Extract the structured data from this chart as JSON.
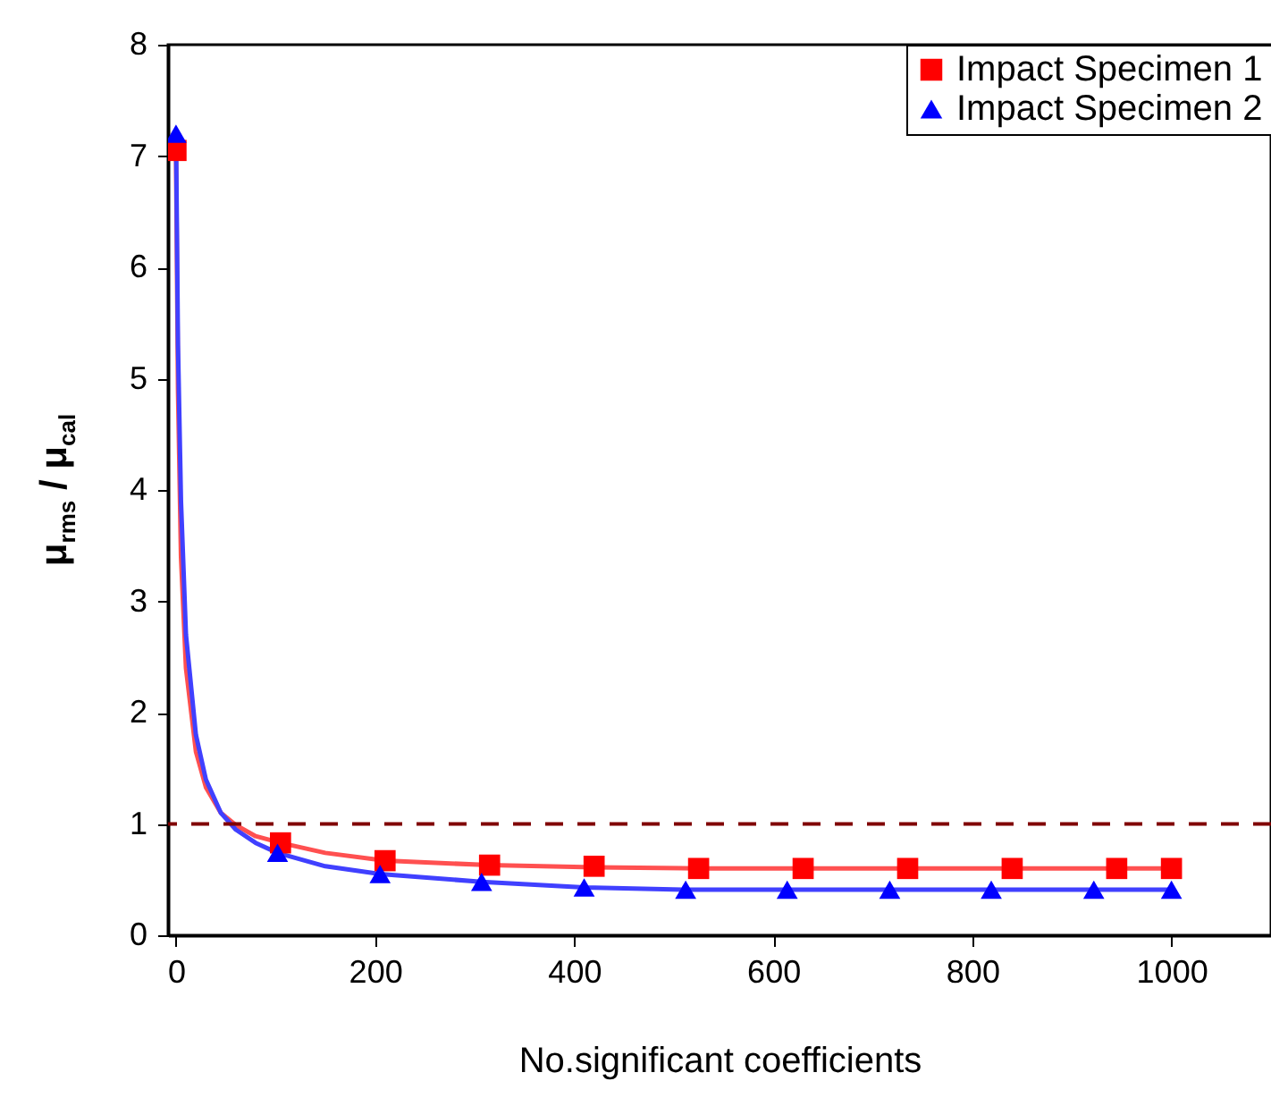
{
  "chart_data": {
    "type": "line",
    "xlabel": "No.significant coefficients",
    "ylabel": "μ$_{rms}$ / μ$_{cal}$",
    "xlim": [
      -8,
      1100
    ],
    "ylim": [
      0,
      8
    ],
    "xticks": [
      0,
      200,
      400,
      600,
      800,
      1000
    ],
    "yticks": [
      0,
      1,
      2,
      3,
      4,
      5,
      6,
      7,
      8
    ],
    "legend": "top right",
    "series": [
      {
        "type": "line",
        "marker": "none",
        "color": "#ff5050",
        "x": [
          0,
          2,
          5,
          10,
          20,
          30,
          45,
          60,
          80,
          105,
          150,
          210,
          315,
          420,
          525,
          630,
          735,
          840,
          945,
          1000
        ],
        "values": [
          7.05,
          4.9,
          3.4,
          2.4,
          1.65,
          1.33,
          1.1,
          0.99,
          0.89,
          0.83,
          0.74,
          0.67,
          0.63,
          0.61,
          0.6,
          0.6,
          0.6,
          0.6,
          0.6,
          0.6
        ]
      },
      {
        "type": "line",
        "marker": "none",
        "color": "#4040ff",
        "x": [
          0,
          2,
          5,
          10,
          20,
          30,
          45,
          60,
          80,
          102,
          150,
          205,
          307,
          410,
          512,
          614,
          717,
          819,
          922,
          1000
        ],
        "values": [
          7.2,
          5.3,
          3.9,
          2.7,
          1.8,
          1.4,
          1.1,
          0.95,
          0.83,
          0.74,
          0.62,
          0.55,
          0.48,
          0.43,
          0.41,
          0.41,
          0.41,
          0.41,
          0.41,
          0.41
        ]
      },
      {
        "type": "scatter",
        "name": "Impact Specimen 1",
        "marker": "square",
        "color": "#ff0000",
        "x": [
          0,
          105,
          210,
          315,
          420,
          525,
          630,
          735,
          840,
          945,
          1000
        ],
        "values": [
          7.05,
          0.83,
          0.67,
          0.63,
          0.62,
          0.6,
          0.6,
          0.6,
          0.6,
          0.6,
          0.6
        ]
      },
      {
        "type": "scatter",
        "name": "Impact Specimen 2",
        "marker": "triangle",
        "color": "#0000ff",
        "x": [
          0,
          102,
          205,
          307,
          410,
          512,
          614,
          717,
          819,
          922,
          1000
        ],
        "values": [
          7.2,
          0.74,
          0.55,
          0.48,
          0.43,
          0.41,
          0.41,
          0.41,
          0.41,
          0.41,
          0.41
        ]
      }
    ],
    "ref_lines": [
      {
        "axis": "y",
        "value": 1,
        "color": "#800000",
        "line_style": "dashed"
      }
    ]
  }
}
